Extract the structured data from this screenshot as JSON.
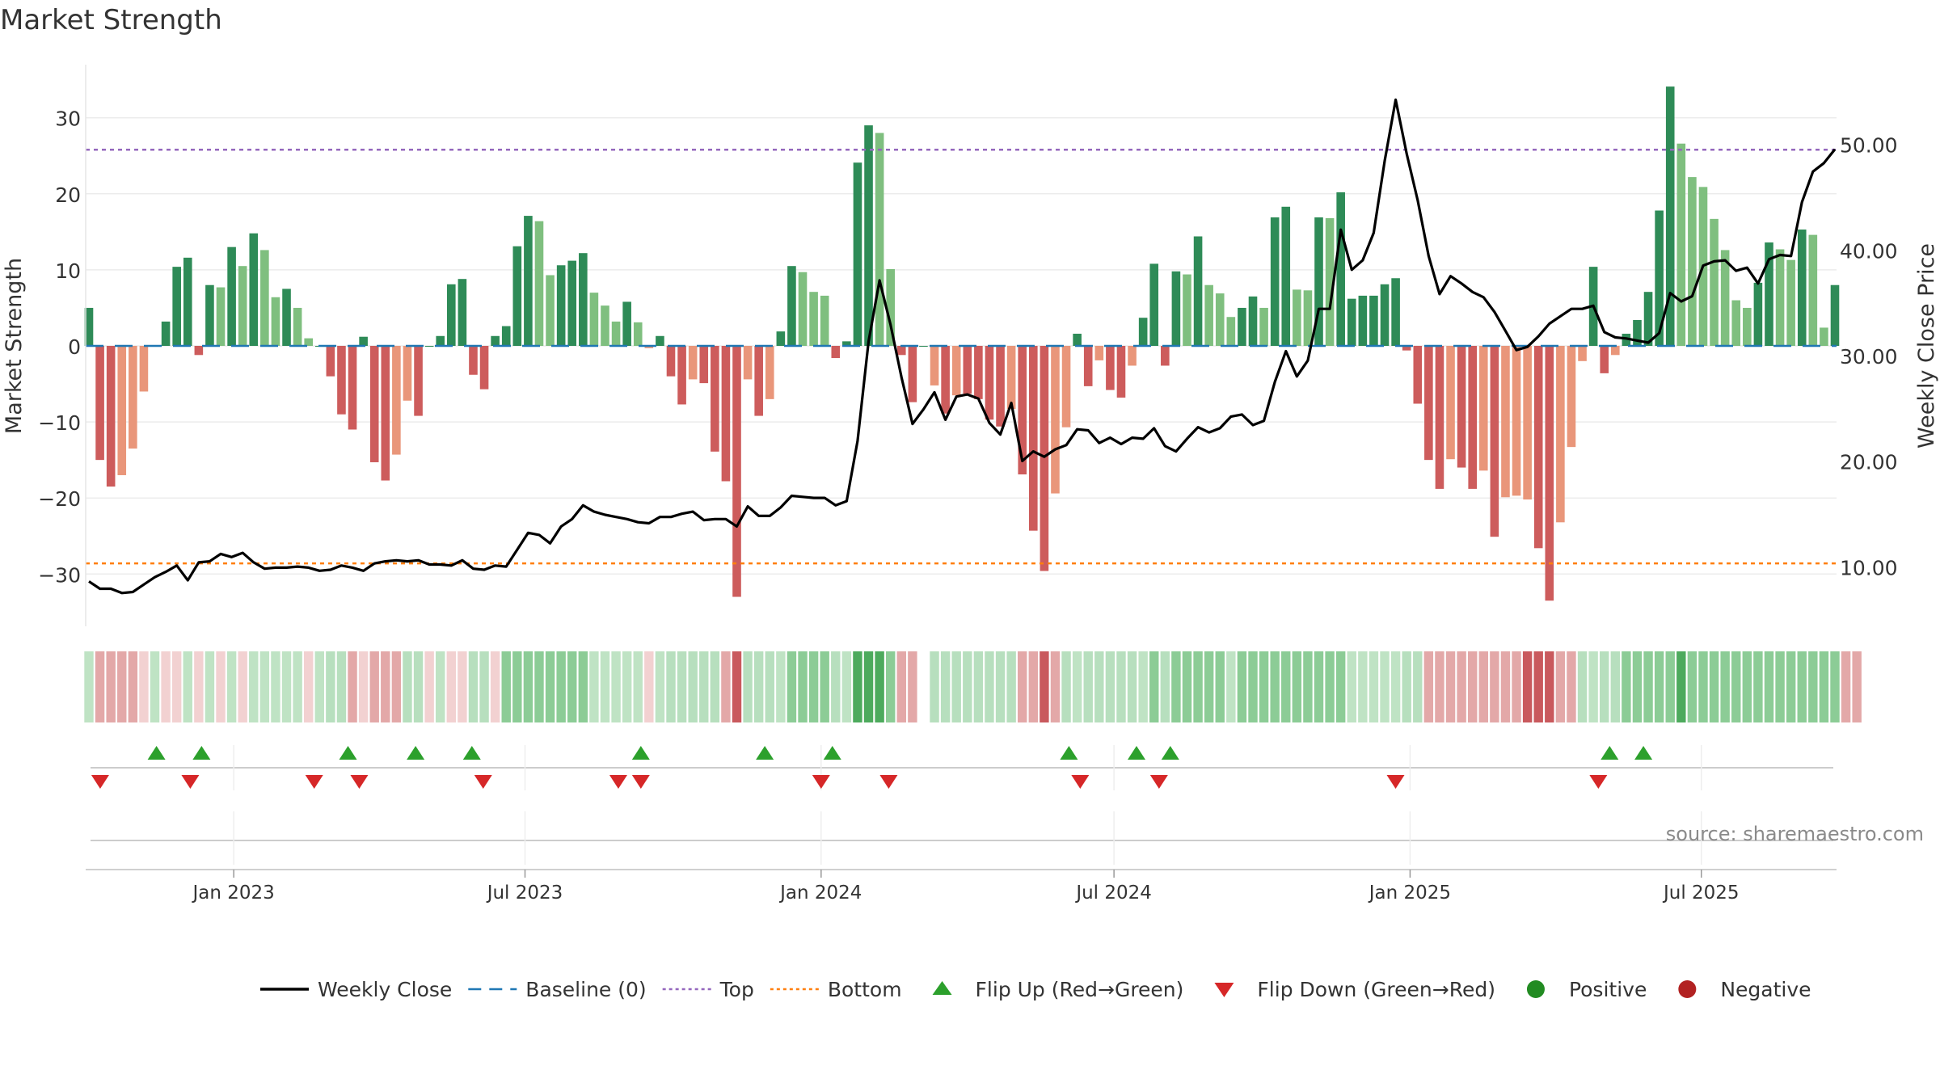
{
  "title": "Market Strength",
  "source": "source: sharemaestro.com",
  "colors": {
    "strong_green": "#2e8b57",
    "light_green": "#7fbf7f",
    "strong_red": "#cd5c5c",
    "light_red": "#e9967a",
    "close_line": "#000000",
    "baseline": "#1f77b4",
    "top": "#9467bd",
    "bottom": "#ff7f0e",
    "flip_up": "#2ca02c",
    "flip_down": "#d62728"
  },
  "chart_data": {
    "type": "bar",
    "x_axis": {
      "start": "2022-10-03",
      "end": "2025-09-22",
      "tick_labels": [
        "Jan 2023",
        "Jul 2023",
        "Jan 2024",
        "Jul 2024",
        "Jan 2025",
        "Jul 2025"
      ],
      "tick_dates": [
        "2023-01-01",
        "2023-07-01",
        "2024-01-01",
        "2024-07-01",
        "2025-01-01",
        "2025-07-01"
      ]
    },
    "left_axis": {
      "label": "Market Strength",
      "range": [
        -37,
        37
      ],
      "ticks": [
        30,
        20,
        10,
        0,
        -10,
        -20,
        -30
      ],
      "tick_labels": [
        "30",
        "20",
        "10",
        "0",
        "−10",
        "−20",
        "−30"
      ]
    },
    "right_axis": {
      "label": "Weekly Close Price",
      "range": [
        2.5,
        55
      ],
      "ticks": [
        50,
        40,
        30,
        20,
        10
      ],
      "tick_labels": [
        "50.00",
        "40.00",
        "30.00",
        "20.00",
        "10.00"
      ]
    },
    "reference_lines": {
      "top": 25.8,
      "bottom": -28.6,
      "baseline": 0
    },
    "strength": [
      5,
      -15,
      -18.5,
      -17,
      -13.5,
      -6,
      0,
      3.2,
      10.4,
      11.6,
      -1.2,
      8,
      7.7,
      13,
      10.5,
      14.8,
      12.6,
      6.4,
      7.5,
      5,
      1,
      0,
      -4,
      -9,
      -11,
      1.2,
      -15.3,
      -17.7,
      -14.3,
      -7.2,
      -9.2,
      0,
      1.3,
      8.1,
      8.8,
      -3.8,
      -5.7,
      1.3,
      2.6,
      13.1,
      17.1,
      16.4,
      9.3,
      10.6,
      11.2,
      12.2,
      7,
      5.3,
      3.2,
      5.8,
      3.1,
      -0.3,
      1.3,
      -4,
      -7.7,
      -4.4,
      -4.9,
      -13.9,
      -17.8,
      -33,
      -4.4,
      -9.2,
      -7,
      1.9,
      10.5,
      9.7,
      7.1,
      6.6,
      -1.6,
      0.6,
      24.1,
      29,
      28,
      10.1,
      -1.2,
      -7.4,
      0,
      -5.2,
      -8.9,
      -6.5,
      -6.3,
      -7,
      -9.7,
      -10.6,
      -8.3,
      -16.9,
      -24.3,
      -29.6,
      -19.4,
      -10.7,
      1.6,
      -5.3,
      -1.9,
      -5.8,
      -6.8,
      -2.6,
      3.7,
      10.8,
      -2.6,
      9.8,
      9.4,
      14.4,
      8,
      6.9,
      3.8,
      5,
      6.5,
      5,
      16.9,
      18.3,
      7.4,
      7.3,
      16.9,
      16.8,
      20.2,
      6.2,
      6.6,
      6.6,
      8.1,
      8.9,
      -0.6,
      -7.6,
      -15,
      -18.8,
      -14.9,
      -16,
      -18.8,
      -16.4,
      -25.1,
      -19.9,
      -19.7,
      -20.2,
      -26.6,
      -33.5,
      -23.2,
      -13.3,
      -2,
      10.4,
      -3.6,
      -1.2,
      1.6,
      3.4,
      7.1,
      17.8,
      34.1,
      26.6,
      22.2,
      20.9,
      16.7,
      12.6,
      6,
      5,
      8.3,
      13.6,
      12.7,
      11.3,
      15.3,
      14.6,
      2.4,
      8
    ],
    "close": [
      8.7,
      8,
      8,
      7.6,
      7.7,
      8.4,
      9.1,
      9.6,
      10.2,
      8.8,
      10.5,
      10.6,
      11.3,
      11,
      11.4,
      10.5,
      9.9,
      10,
      10,
      10.1,
      10,
      9.7,
      9.8,
      10.2,
      10,
      9.7,
      10.4,
      10.6,
      10.7,
      10.6,
      10.7,
      10.3,
      10.3,
      10.2,
      10.7,
      9.9,
      9.8,
      10.2,
      10.1,
      11.7,
      13.3,
      13.1,
      12.3,
      13.9,
      14.6,
      15.9,
      15.3,
      15,
      14.8,
      14.6,
      14.3,
      14.2,
      14.8,
      14.8,
      15.1,
      15.3,
      14.5,
      14.6,
      14.6,
      13.9,
      15.8,
      14.9,
      14.9,
      15.7,
      16.8,
      16.7,
      16.6,
      16.6,
      15.9,
      16.3,
      22,
      31.4,
      37.2,
      33,
      28,
      23.6,
      25,
      26.6,
      24,
      26.2,
      26.4,
      26,
      23.7,
      22.6,
      25.6,
      20.1,
      21,
      20.5,
      21.2,
      21.6,
      23.1,
      23,
      21.8,
      22.3,
      21.7,
      22.3,
      22.2,
      23.2,
      21.5,
      21,
      22.2,
      23.3,
      22.8,
      23.2,
      24.3,
      24.5,
      23.5,
      23.9,
      27.6,
      30.5,
      28.1,
      29.6,
      34.5,
      34.5,
      42,
      38.2,
      39.1,
      41.7,
      48.5,
      54.3,
      49.2,
      44.8,
      39.5,
      35.9,
      37.6,
      36.9,
      36.1,
      35.6,
      34.2,
      32.4,
      30.6,
      30.9,
      31.9,
      33.1,
      33.8,
      34.5,
      34.5,
      34.8,
      32.3,
      31.8,
      31.7,
      31.5,
      31.3,
      32.2,
      36,
      35.2,
      35.7,
      38.6,
      39,
      39.1,
      38.1,
      38.4,
      36.9,
      39.2,
      39.6,
      39.5,
      44.6,
      47.5,
      48.3,
      49.6
    ],
    "bar_shade": [
      "s",
      "s",
      "s",
      "l",
      "l",
      "l",
      "s",
      "s",
      "s",
      "s",
      "s",
      "s",
      "l",
      "s",
      "l",
      "s",
      "l",
      "l",
      "s",
      "l",
      "l",
      "s",
      "s",
      "s",
      "s",
      "s",
      "s",
      "s",
      "l",
      "l",
      "s",
      "s",
      "s",
      "s",
      "s",
      "s",
      "s",
      "s",
      "s",
      "s",
      "s",
      "l",
      "l",
      "s",
      "s",
      "s",
      "l",
      "l",
      "l",
      "s",
      "l",
      "l",
      "s",
      "s",
      "s",
      "l",
      "s",
      "s",
      "s",
      "s",
      "l",
      "s",
      "l",
      "s",
      "s",
      "l",
      "l",
      "l",
      "s",
      "s",
      "s",
      "s",
      "l",
      "l",
      "s",
      "s",
      "s",
      "l",
      "s",
      "l",
      "s",
      "s",
      "s",
      "s",
      "l",
      "s",
      "s",
      "s",
      "l",
      "l",
      "s",
      "s",
      "l",
      "s",
      "s",
      "l",
      "s",
      "s",
      "s",
      "s",
      "l",
      "s",
      "l",
      "l",
      "l",
      "s",
      "s",
      "l",
      "s",
      "s",
      "l",
      "l",
      "s",
      "l",
      "s",
      "s",
      "s",
      "s",
      "s",
      "s",
      "s",
      "s",
      "s",
      "s",
      "l",
      "s",
      "s",
      "l",
      "s",
      "l",
      "l",
      "l",
      "s",
      "s",
      "l",
      "l",
      "l",
      "s",
      "s",
      "l",
      "s",
      "s",
      "s",
      "s",
      "s",
      "l",
      "l",
      "l",
      "l",
      "l",
      "l",
      "l",
      "s",
      "s",
      "l",
      "l",
      "s",
      "l",
      "l",
      "s"
    ],
    "heat_strip": [
      "l",
      "m",
      "m",
      "m",
      "m",
      "n",
      "l",
      "n",
      "n",
      "l",
      "n",
      "l",
      "n",
      "l",
      "n",
      "l",
      "l",
      "l",
      "l",
      "l",
      "n",
      "l",
      "l",
      "l",
      "m",
      "n",
      "m",
      "m",
      "m",
      "l",
      "l",
      "n",
      "l",
      "n",
      "n",
      "l",
      "l",
      "n",
      "m",
      "m",
      "m",
      "m",
      "m",
      "m",
      "m",
      "m",
      "l",
      "l",
      "l",
      "l",
      "l",
      "n",
      "l",
      "l",
      "l",
      "l",
      "l",
      "l",
      "m",
      "h",
      "l",
      "l",
      "l",
      "l",
      "m",
      "m",
      "m",
      "m",
      "l",
      "l",
      "h",
      "h",
      "h",
      "m",
      "m",
      "m",
      "g",
      "l",
      "l",
      "l",
      "l",
      "l",
      "l",
      "l",
      "l",
      "m",
      "m",
      "h",
      "m",
      "l",
      "l",
      "l",
      "l",
      "l",
      "l",
      "l",
      "l",
      "m",
      "l",
      "m",
      "m",
      "m",
      "m",
      "m",
      "l",
      "m",
      "m",
      "m",
      "m",
      "m",
      "m",
      "m",
      "m",
      "m",
      "m",
      "l",
      "l",
      "l",
      "l",
      "l",
      "l",
      "l",
      "m",
      "m",
      "m",
      "m",
      "m",
      "m",
      "m",
      "m",
      "m",
      "h",
      "h",
      "h",
      "m",
      "m",
      "l",
      "l",
      "l",
      "l",
      "m",
      "m",
      "m",
      "m",
      "m",
      "h",
      "m",
      "m",
      "m",
      "m",
      "m",
      "m",
      "m",
      "m",
      "m",
      "m",
      "m",
      "m",
      "m",
      "m",
      "m",
      "m"
    ],
    "flip_up_dates": [
      "2022-11-14",
      "2022-12-12",
      "2023-03-13",
      "2023-04-24",
      "2023-05-29",
      "2023-09-11",
      "2023-11-27",
      "2024-01-08",
      "2024-06-03",
      "2024-07-15",
      "2024-08-05",
      "2025-05-05",
      "2025-05-26"
    ],
    "flip_down_dates": [
      "2022-10-10",
      "2022-12-05",
      "2023-02-20",
      "2023-03-20",
      "2023-06-05",
      "2023-08-28",
      "2023-09-11",
      "2024-01-01",
      "2024-02-12",
      "2024-06-10",
      "2024-07-29",
      "2024-12-23",
      "2025-04-28"
    ]
  },
  "legend": [
    {
      "kind": "line",
      "label": "Weekly Close"
    },
    {
      "kind": "dash",
      "label": "Baseline (0)"
    },
    {
      "kind": "dot-top",
      "label": "Top"
    },
    {
      "kind": "dot-bottom",
      "label": "Bottom"
    },
    {
      "kind": "tri-up",
      "label": "Flip Up (Red→Green)"
    },
    {
      "kind": "tri-down",
      "label": "Flip Down (Green→Red)"
    },
    {
      "kind": "circle-pos",
      "label": "Positive"
    },
    {
      "kind": "circle-neg",
      "label": "Negative"
    }
  ]
}
